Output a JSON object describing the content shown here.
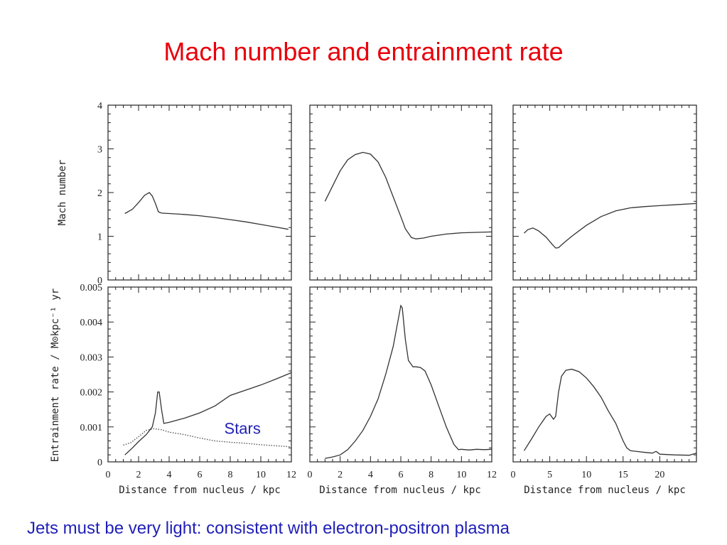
{
  "title": "Mach number and entrainment rate",
  "footer": "Jets must be very light: consistent with electron-positron plasma",
  "colors": {
    "title": "#e8000b",
    "footer": "#1f1fb8",
    "annotation": "#1f1fb8",
    "lines": "#333333"
  },
  "chart_data": [
    {
      "type": "line",
      "panel": "top-left",
      "ylabel": "Mach number",
      "xlabel": "",
      "xlim": [
        0,
        12
      ],
      "ylim": [
        0,
        4
      ],
      "xticks_labeled": [],
      "yticks_labeled": [
        "0",
        "1",
        "2",
        "3",
        "4"
      ],
      "series": [
        {
          "style": "solid",
          "x": [
            1.1,
            1.6,
            2.0,
            2.4,
            2.7,
            2.9,
            3.1,
            3.3,
            3.5,
            5,
            6,
            7,
            8,
            9,
            10,
            11,
            11.8
          ],
          "y": [
            1.52,
            1.62,
            1.77,
            1.94,
            2.0,
            1.92,
            1.75,
            1.56,
            1.53,
            1.5,
            1.47,
            1.43,
            1.38,
            1.33,
            1.27,
            1.21,
            1.16
          ]
        }
      ]
    },
    {
      "type": "line",
      "panel": "top-middle",
      "ylabel": "",
      "xlabel": "",
      "xlim": [
        0,
        12
      ],
      "ylim": [
        0,
        4
      ],
      "xticks_labeled": [],
      "yticks_labeled": [],
      "series": [
        {
          "style": "solid",
          "x": [
            1.0,
            1.5,
            2.0,
            2.5,
            3.0,
            3.5,
            4.0,
            4.5,
            5.0,
            5.5,
            6.0,
            6.3,
            6.7,
            7.0,
            7.5,
            8,
            9,
            10,
            11,
            12
          ],
          "y": [
            1.8,
            2.15,
            2.5,
            2.75,
            2.87,
            2.92,
            2.88,
            2.7,
            2.35,
            1.9,
            1.45,
            1.17,
            0.97,
            0.94,
            0.96,
            1.0,
            1.05,
            1.08,
            1.09,
            1.1
          ]
        }
      ]
    },
    {
      "type": "line",
      "panel": "top-right",
      "ylabel": "",
      "xlabel": "",
      "xlim": [
        0,
        25
      ],
      "ylim": [
        0,
        4
      ],
      "xticks_labeled": [],
      "yticks_labeled": [],
      "series": [
        {
          "style": "solid",
          "x": [
            1.5,
            2.0,
            2.7,
            3.5,
            4.5,
            5.3,
            5.8,
            6.2,
            7,
            8,
            10,
            12,
            14,
            16,
            18,
            20,
            22,
            25
          ],
          "y": [
            1.07,
            1.15,
            1.19,
            1.12,
            0.98,
            0.82,
            0.73,
            0.74,
            0.86,
            1.0,
            1.25,
            1.45,
            1.58,
            1.65,
            1.68,
            1.7,
            1.72,
            1.75
          ]
        }
      ]
    },
    {
      "type": "line",
      "panel": "bottom-left",
      "ylabel": "Entrainment rate / M⊙kpc⁻¹ yr",
      "xlabel": "Distance from nucleus / kpc",
      "xlim": [
        0,
        12
      ],
      "ylim": [
        0,
        0.005
      ],
      "xticks_labeled": [
        "0",
        "2",
        "4",
        "6",
        "8",
        "10",
        "12"
      ],
      "yticks_labeled": [
        "0",
        "0.001",
        "0.002",
        "0.003",
        "0.004",
        "0.005"
      ],
      "annotation": {
        "text": "Stars",
        "x": 8.8,
        "y": 0.0008
      },
      "series": [
        {
          "style": "solid",
          "x": [
            1.1,
            1.6,
            2.0,
            2.5,
            2.9,
            3.1,
            3.25,
            3.35,
            3.5,
            3.65,
            4,
            5,
            6,
            7,
            8,
            9,
            10,
            11,
            12
          ],
          "y": [
            0.0002,
            0.0004,
            0.00058,
            0.00078,
            0.001,
            0.0014,
            0.002,
            0.002,
            0.0015,
            0.0011,
            0.00113,
            0.00125,
            0.0014,
            0.0016,
            0.0019,
            0.00205,
            0.0022,
            0.00237,
            0.00255
          ]
        },
        {
          "style": "dotted",
          "x": [
            1.0,
            1.5,
            2.0,
            2.5,
            3.0,
            3.5,
            4,
            5,
            6,
            7,
            8,
            9,
            10,
            11,
            12
          ],
          "y": [
            0.00048,
            0.00055,
            0.00072,
            0.0009,
            0.00095,
            0.00092,
            0.00085,
            0.00078,
            0.00068,
            0.0006,
            0.00056,
            0.00053,
            0.00049,
            0.00046,
            0.00043
          ]
        }
      ]
    },
    {
      "type": "line",
      "panel": "bottom-middle",
      "ylabel": "",
      "xlabel": "Distance from nucleus / kpc",
      "xlim": [
        0,
        12
      ],
      "ylim": [
        0,
        0.005
      ],
      "xticks_labeled": [
        "0",
        "2",
        "4",
        "6",
        "8",
        "10",
        "12"
      ],
      "yticks_labeled": [],
      "series": [
        {
          "style": "solid",
          "x": [
            1.0,
            1.5,
            2.0,
            2.5,
            3.0,
            3.5,
            4.0,
            4.5,
            5.0,
            5.5,
            5.8,
            6.0,
            6.1,
            6.3,
            6.5,
            6.8,
            7.0,
            7.3,
            7.6,
            8.0,
            8.5,
            9.0,
            9.5,
            9.8,
            10,
            10.5,
            11,
            11.5,
            12
          ],
          "y": [
            0.0001,
            0.00014,
            0.0002,
            0.00035,
            0.0006,
            0.0009,
            0.0013,
            0.0018,
            0.0025,
            0.0033,
            0.004,
            0.00447,
            0.0044,
            0.0035,
            0.0029,
            0.00272,
            0.00272,
            0.0027,
            0.0026,
            0.0022,
            0.0016,
            0.001,
            0.0005,
            0.00035,
            0.00036,
            0.00034,
            0.00036,
            0.00035,
            0.00036
          ]
        }
      ]
    },
    {
      "type": "line",
      "panel": "bottom-right",
      "ylabel": "",
      "xlabel": "Distance from nucleus / kpc",
      "xlim": [
        0,
        25
      ],
      "ylim": [
        0,
        0.005
      ],
      "xticks_labeled": [
        "0",
        "5",
        "10",
        "15",
        "20"
      ],
      "yticks_labeled": [],
      "series": [
        {
          "style": "solid",
          "x": [
            1.5,
            2.5,
            3.5,
            4.5,
            5.0,
            5.5,
            5.8,
            6.2,
            6.6,
            7.2,
            8,
            9,
            10,
            11,
            12,
            13,
            14,
            15,
            15.5,
            16,
            18,
            19,
            19.5,
            20,
            22,
            24,
            25
          ],
          "y": [
            0.00032,
            0.00065,
            0.001,
            0.0013,
            0.00137,
            0.00122,
            0.0013,
            0.002,
            0.00245,
            0.00262,
            0.00265,
            0.00258,
            0.0024,
            0.00215,
            0.00185,
            0.00145,
            0.0011,
            0.0006,
            0.0004,
            0.00032,
            0.00027,
            0.00025,
            0.0003,
            0.00022,
            0.0002,
            0.00019,
            0.00025
          ]
        }
      ]
    }
  ]
}
